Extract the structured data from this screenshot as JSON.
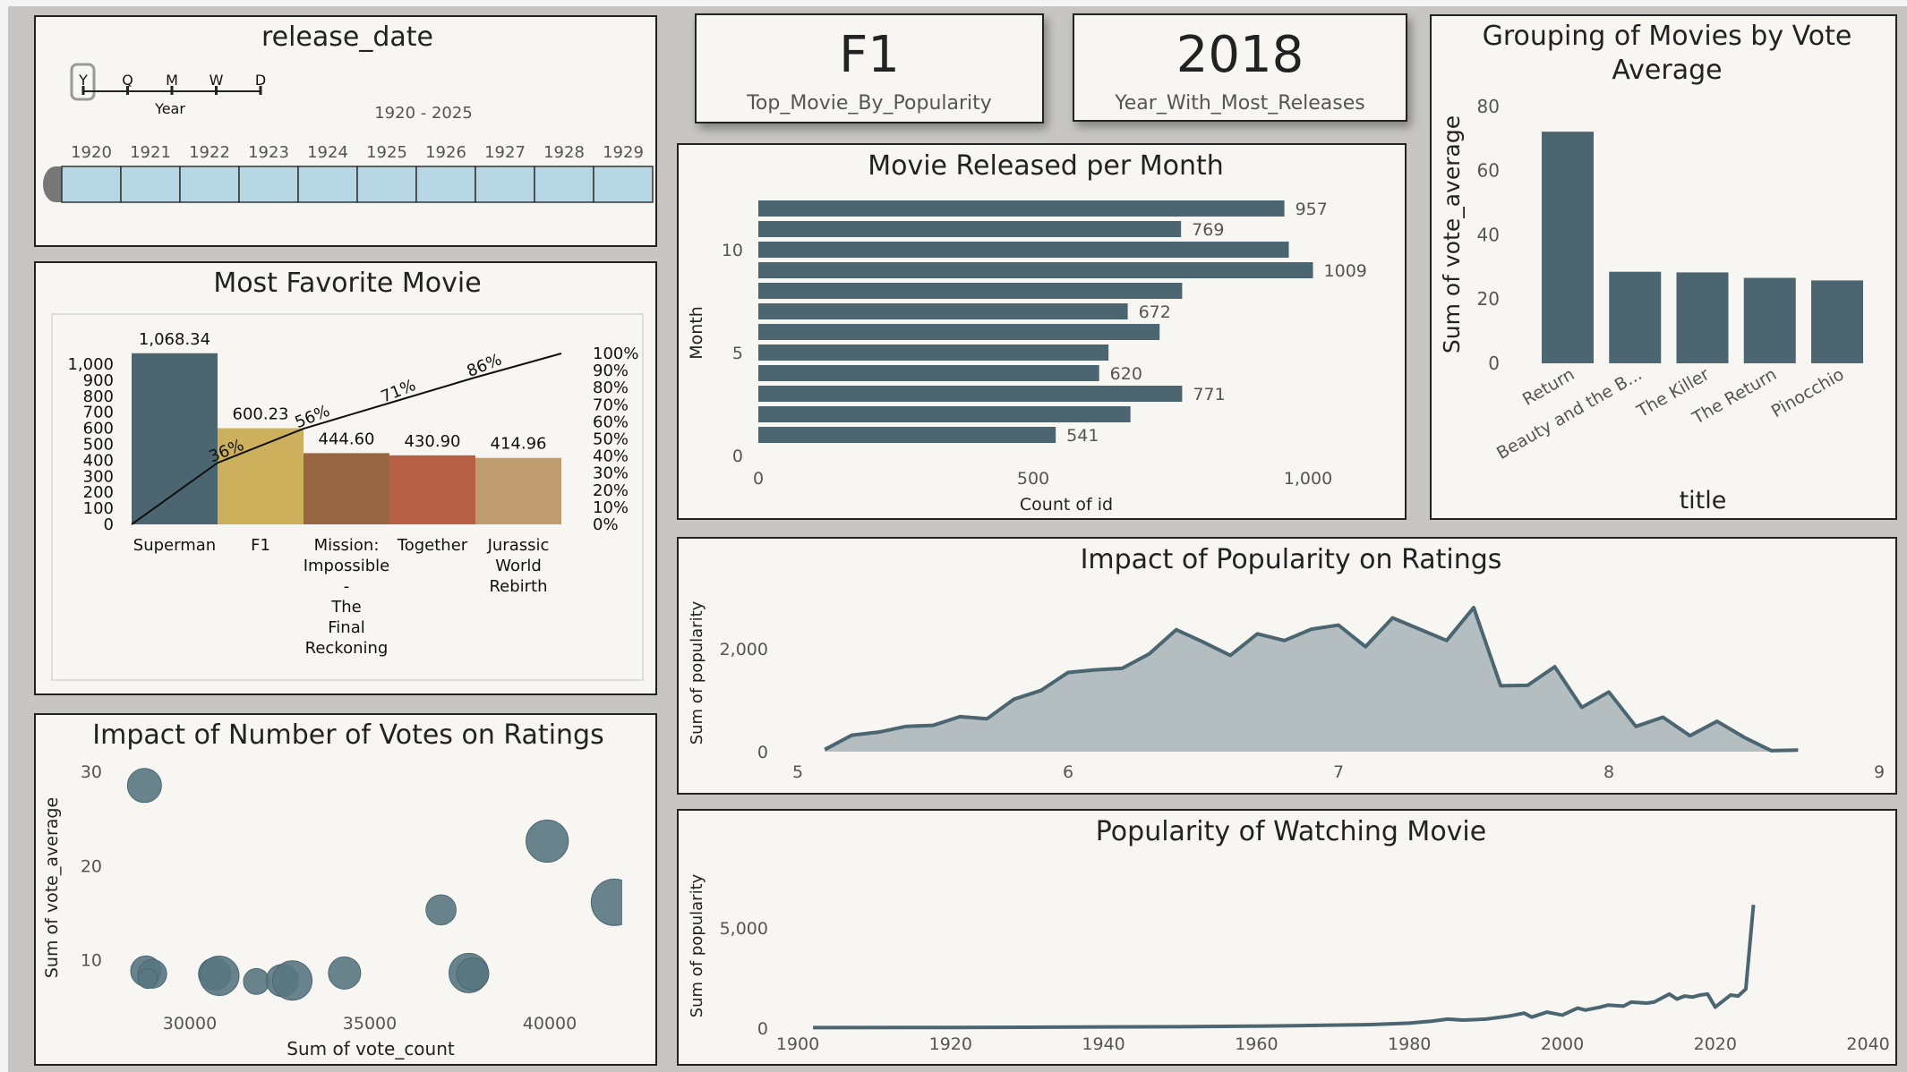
{
  "release_date_slicer": {
    "title": "release_date",
    "levels": [
      "Y",
      "Q",
      "M",
      "W",
      "D"
    ],
    "selected_level": "Y",
    "level_label": "Year",
    "range": "1920 - 2025",
    "years": [
      "1920",
      "1921",
      "1922",
      "1923",
      "1924",
      "1925",
      "1926",
      "1927",
      "1928",
      "1929"
    ]
  },
  "kpis": [
    {
      "value": "F1",
      "label": "Top_Movie_By_Popularity"
    },
    {
      "value": "2018",
      "label": "Year_With_Most_Releases"
    }
  ],
  "colors": {
    "primary": "#4b6670",
    "area_fill": "#b4bdc0",
    "panel_bg": "#f7f6f2",
    "slicer_fill": "#b6d7e3",
    "pareto": [
      "#4b6670",
      "#ccb05c",
      "#996644",
      "#b76046",
      "#bf9c70"
    ]
  },
  "chart_data": [
    {
      "id": "most_favorite",
      "type": "bar",
      "subtype": "pareto",
      "title": "Most Favorite Movie",
      "categories": [
        "Superman",
        "F1",
        "Mission: Impossible - The Final Reckoning",
        "Together",
        "Jurassic World Rebirth"
      ],
      "values": [
        1068.34,
        600.23,
        444.6,
        430.9,
        414.96
      ],
      "value_labels": [
        "1,068.34",
        "600.23",
        "444.60",
        "430.90",
        "414.96"
      ],
      "cumulative_pct": [
        36,
        56,
        71,
        86,
        100
      ],
      "cumulative_labels": [
        "36%",
        "56%",
        "71%",
        "86%",
        ""
      ],
      "yticks": [
        "0",
        "100",
        "200",
        "300",
        "400",
        "500",
        "600",
        "700",
        "800",
        "900",
        "1,000"
      ],
      "y2ticks": [
        "0%",
        "10%",
        "20%",
        "30%",
        "40%",
        "50%",
        "60%",
        "70%",
        "80%",
        "90%",
        "100%"
      ],
      "ylim": [
        0,
        1000
      ]
    },
    {
      "id": "per_month",
      "type": "bar",
      "orientation": "horizontal",
      "title": "Movie Released per Month",
      "xlabel": "Count of id",
      "ylabel": "Month",
      "categories": [
        1,
        2,
        3,
        4,
        5,
        6,
        7,
        8,
        9,
        10,
        11,
        12
      ],
      "values": [
        541,
        677,
        771,
        620,
        637,
        730,
        672,
        771,
        1009,
        965,
        769,
        957
      ],
      "data_labels": [
        "541",
        "",
        "771",
        "620",
        "",
        "",
        "672",
        "",
        "1009",
        "",
        "769",
        "957"
      ],
      "xticks": [
        "0",
        "500",
        "1,000"
      ],
      "yticks": [
        "0",
        "5",
        "10"
      ],
      "xlim": [
        0,
        1000
      ]
    },
    {
      "id": "vote_average_group",
      "type": "bar",
      "title_lines": [
        "Grouping of Movies by Vote",
        "Average"
      ],
      "xlabel": "title",
      "ylabel": "Sum of vote_average",
      "categories": [
        "Return",
        "Beauty and the B...",
        "The Killer",
        "The Return",
        "Pinocchio"
      ],
      "values": [
        72.1,
        28.5,
        28.3,
        26.6,
        25.8
      ],
      "yticks": [
        "0",
        "20",
        "40",
        "60",
        "80"
      ],
      "ylim": [
        0,
        80
      ]
    },
    {
      "id": "popularity_ratings",
      "type": "area",
      "title": "Impact of Popularity on Ratings",
      "ylabel": "Sum of popularity",
      "x": [
        5.1,
        5.2,
        5.3,
        5.4,
        5.5,
        5.6,
        5.7,
        5.8,
        5.9,
        6.0,
        6.1,
        6.2,
        6.3,
        6.4,
        6.5,
        6.6,
        6.7,
        6.8,
        6.9,
        7.0,
        7.1,
        7.2,
        7.3,
        7.4,
        7.5,
        7.6,
        7.7,
        7.8,
        7.9,
        8.0,
        8.1,
        8.2,
        8.3,
        8.4,
        8.5,
        8.6,
        8.7
      ],
      "y": [
        40,
        320,
        380,
        490,
        510,
        680,
        640,
        1020,
        1190,
        1540,
        1590,
        1620,
        1900,
        2370,
        2130,
        1870,
        2290,
        2160,
        2380,
        2460,
        2040,
        2600,
        2380,
        2160,
        2800,
        1280,
        1290,
        1650,
        860,
        1160,
        490,
        670,
        310,
        590,
        280,
        20,
        30
      ],
      "xticks": [
        "5",
        "6",
        "7",
        "8",
        "9"
      ],
      "yticks": [
        "0",
        "2,000"
      ],
      "xlim": [
        5,
        9
      ]
    },
    {
      "id": "popularity_years",
      "type": "line",
      "title": "Popularity of Watching Movie",
      "ylabel": "Sum of popularity",
      "x": [
        1902,
        1920,
        1940,
        1950,
        1960,
        1965,
        1970,
        1975,
        1980,
        1983,
        1985,
        1987,
        1990,
        1993,
        1995,
        1996,
        1998,
        2000,
        2002,
        2003,
        2005,
        2006,
        2008,
        2009,
        2011,
        2012,
        2014,
        2015,
        2016,
        2017,
        2018,
        2019,
        2020,
        2022,
        2023,
        2024,
        2025
      ],
      "y": [
        30,
        35,
        60,
        70,
        100,
        120,
        150,
        180,
        250,
        350,
        450,
        400,
        450,
        600,
        750,
        550,
        800,
        650,
        1000,
        900,
        1050,
        1150,
        1100,
        1300,
        1250,
        1300,
        1700,
        1450,
        1600,
        1550,
        1650,
        1700,
        1050,
        1650,
        1600,
        1950,
        6150
      ],
      "xticks": [
        "1900",
        "1920",
        "1940",
        "1960",
        "1980",
        "2000",
        "2020",
        "2040"
      ],
      "yticks": [
        "0",
        "5,000"
      ],
      "xlim": [
        1900,
        2040
      ]
    },
    {
      "id": "votes_ratings",
      "type": "scatter",
      "title": "Impact of Number of Votes on Ratings",
      "xlabel": "Sum of vote_count",
      "ylabel": "Sum of vote_average",
      "points": [
        {
          "x": 28740,
          "y": 28.5,
          "size": 0.95
        },
        {
          "x": 28780,
          "y": 8.8,
          "size": 0.85
        },
        {
          "x": 28960,
          "y": 8.5,
          "size": 0.8
        },
        {
          "x": 28830,
          "y": 8.0,
          "size": 0.55
        },
        {
          "x": 30690,
          "y": 8.5,
          "size": 0.9
        },
        {
          "x": 30820,
          "y": 8.3,
          "size": 1.1
        },
        {
          "x": 31850,
          "y": 7.7,
          "size": 0.72
        },
        {
          "x": 32570,
          "y": 7.8,
          "size": 0.9
        },
        {
          "x": 32850,
          "y": 7.8,
          "size": 1.1
        },
        {
          "x": 34300,
          "y": 8.6,
          "size": 0.9
        },
        {
          "x": 36980,
          "y": 15.3,
          "size": 0.84
        },
        {
          "x": 37750,
          "y": 8.6,
          "size": 1.1
        },
        {
          "x": 37860,
          "y": 8.5,
          "size": 0.9
        },
        {
          "x": 39930,
          "y": 22.6,
          "size": 1.18
        },
        {
          "x": 41800,
          "y": 16.1,
          "size": 1.3
        }
      ],
      "xticks": [
        "30000",
        "35000",
        "40000"
      ],
      "yticks": [
        "10",
        "20",
        "30"
      ]
    }
  ]
}
